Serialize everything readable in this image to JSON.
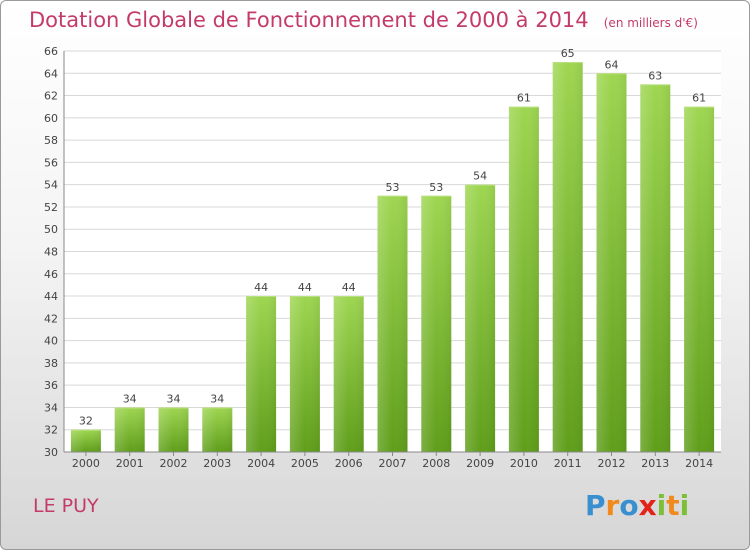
{
  "chart_data": {
    "type": "bar",
    "title": "Dotation Globale de Fonctionnement de 2000 à 2014",
    "unit_note": "(en milliers d'€)",
    "categories": [
      "2000",
      "2001",
      "2002",
      "2003",
      "2004",
      "2005",
      "2006",
      "2007",
      "2008",
      "2009",
      "2010",
      "2011",
      "2012",
      "2013",
      "2014"
    ],
    "values": [
      32,
      34,
      34,
      34,
      44,
      44,
      44,
      53,
      53,
      54,
      61,
      65,
      64,
      63,
      61
    ],
    "ylim": [
      30,
      66
    ],
    "yticks": [
      30,
      32,
      34,
      36,
      38,
      40,
      42,
      44,
      46,
      48,
      50,
      52,
      54,
      56,
      58,
      60,
      62,
      64,
      66
    ],
    "grid": true,
    "bar_color": "#7cc03a"
  },
  "commune": "LE PUY",
  "logo": {
    "text": "Proxiti",
    "letters": [
      {
        "ch": "P",
        "color": "#3a8fd0"
      },
      {
        "ch": "r",
        "color": "#f08a1c"
      },
      {
        "ch": "o",
        "color": "#3a8fd0"
      },
      {
        "ch": "x",
        "color": "#e2231a"
      },
      {
        "ch": "i",
        "color": "#7cc03a"
      },
      {
        "ch": "t",
        "color": "#f08a1c"
      },
      {
        "ch": "i",
        "color": "#7cc03a"
      }
    ]
  }
}
